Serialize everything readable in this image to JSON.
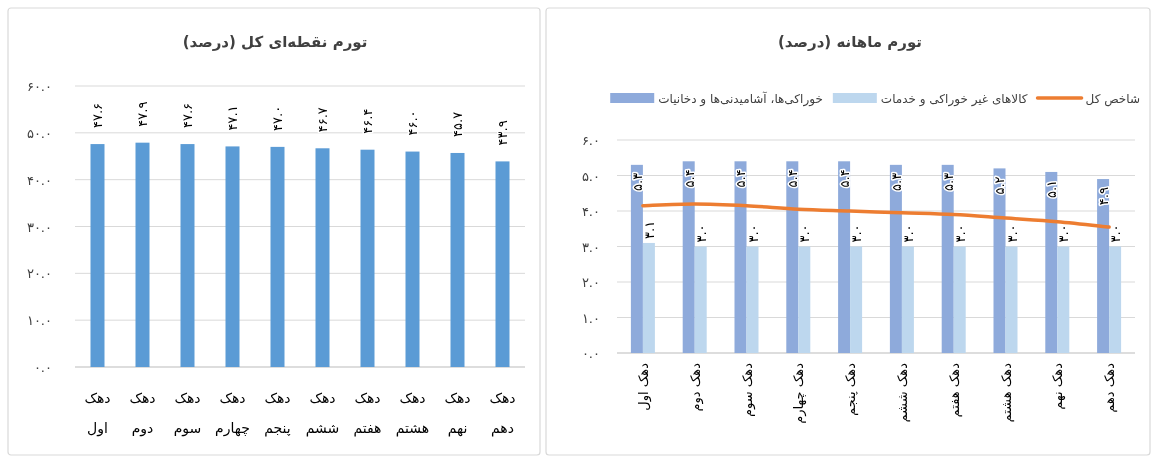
{
  "chart_data": [
    {
      "type": "bar",
      "title": "تورم نقطه‌ای کل (درصد)",
      "categories": [
        "دهک اول",
        "دهک دوم",
        "دهک سوم",
        "دهک چهارم",
        "دهک پنجم",
        "دهک ششم",
        "دهک هفتم",
        "دهک هشتم",
        "دهک نهم",
        "دهک دهم"
      ],
      "values": [
        47.6,
        47.9,
        47.6,
        47.1,
        47.0,
        46.7,
        46.4,
        46.0,
        45.7,
        43.9
      ],
      "value_labels": [
        "۴۷.۶",
        "۴۷.۹",
        "۴۷.۶",
        "۴۷.۱",
        "۴۷.۰",
        "۴۶.۷",
        "۴۶.۴",
        "۴۶.۰",
        "۴۵.۷",
        "۴۳.۹"
      ],
      "color": "#5b9bd5",
      "ylim": [
        0,
        60
      ],
      "yticks": [
        {
          "value": 0,
          "label": "۰.۰"
        },
        {
          "value": 10,
          "label": "۱۰.۰"
        },
        {
          "value": 20,
          "label": "۲۰.۰"
        },
        {
          "value": 30,
          "label": "۳۰.۰"
        },
        {
          "value": 40,
          "label": "۴۰.۰"
        },
        {
          "value": 50,
          "label": "۵۰.۰"
        },
        {
          "value": 60,
          "label": "۶۰.۰"
        }
      ],
      "grid": "y"
    },
    {
      "type": "bar",
      "title": "تورم ماهانه (درصد)",
      "categories": [
        "دهک اول",
        "دهک دوم",
        "دهک سوم",
        "دهک چهارم",
        "دهک پنجم",
        "دهک ششم",
        "دهک هفتم",
        "دهک هشتم",
        "دهک نهم",
        "دهک دهم"
      ],
      "series": [
        {
          "name": "خوراکی‌ها، آشامیدنی‌ها و دخانیات",
          "color": "#8eaadb",
          "values": [
            5.3,
            5.4,
            5.4,
            5.4,
            5.4,
            5.3,
            5.3,
            5.2,
            5.1,
            4.9
          ],
          "value_labels": [
            "۵.۳",
            "۵.۴",
            "۵.۴",
            "۵.۴",
            "۵.۴",
            "۵.۳",
            "۵.۳",
            "۵.۲",
            "۵.۱",
            "۴.۹"
          ]
        },
        {
          "name": "کالاهای غیر خوراکی و خدمات",
          "color": "#bdd7ee",
          "values": [
            3.1,
            3.0,
            3.0,
            3.0,
            3.0,
            3.0,
            3.0,
            3.0,
            3.0,
            3.0
          ],
          "value_labels": [
            "۳.۱",
            "۳.۰",
            "۳.۰",
            "۳.۰",
            "۳.۰",
            "۳.۰",
            "۳.۰",
            "۳.۰",
            "۳.۰",
            "۳.۰"
          ]
        },
        {
          "name": "شاخص کل",
          "type": "line",
          "color": "#ed7d31",
          "values": [
            4.15,
            4.2,
            4.15,
            4.05,
            4.0,
            3.95,
            3.9,
            3.8,
            3.7,
            3.55
          ]
        }
      ],
      "ylim": [
        0,
        6
      ],
      "yticks": [
        {
          "value": 0,
          "label": "۰.۰"
        },
        {
          "value": 1,
          "label": "۱.۰"
        },
        {
          "value": 2,
          "label": "۲.۰"
        },
        {
          "value": 3,
          "label": "۳.۰"
        },
        {
          "value": 4,
          "label": "۴.۰"
        },
        {
          "value": 5,
          "label": "۵.۰"
        },
        {
          "value": 6,
          "label": "۶.۰"
        }
      ],
      "grid": "y",
      "legend": "top"
    }
  ]
}
